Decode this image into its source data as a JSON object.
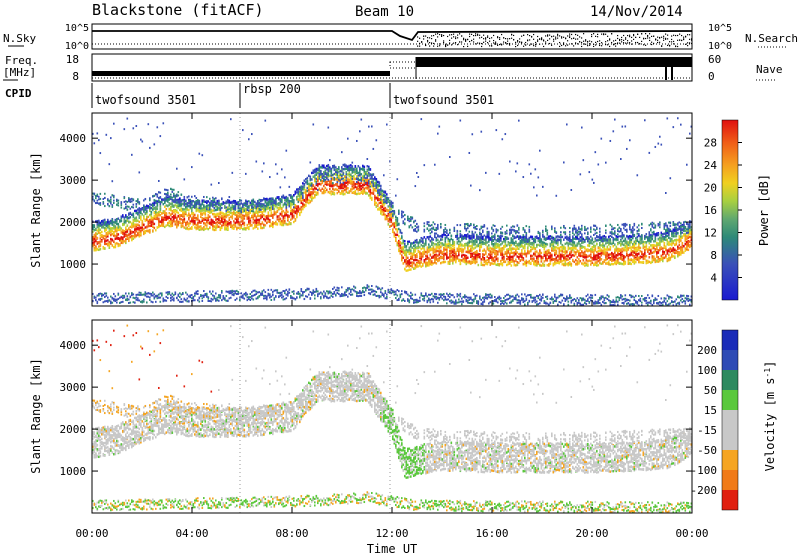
{
  "header": {
    "station": "Blackstone (fitACF)",
    "beam": "Beam 10",
    "date": "14/Nov/2014"
  },
  "noise_panel": {
    "left_label": "N.Sky",
    "right_label": "N.Search",
    "left_ticks": [
      "10^5",
      "10^0"
    ],
    "right_ticks": [
      "10^5",
      "10^0"
    ]
  },
  "freq_panel": {
    "left_label_1": "Freq.",
    "left_label_2": "[MHz]",
    "right_label": "Nave",
    "left_ticks": [
      "18",
      "8"
    ],
    "right_ticks": [
      "60",
      "0"
    ]
  },
  "cpid": {
    "label": "CPID",
    "segments": [
      {
        "name": "twofsound 3501",
        "start_hour": 0,
        "end_hour": 6
      },
      {
        "name": "rbsp 200",
        "start_hour": 6,
        "end_hour": 12
      },
      {
        "name": "twofsound 3501",
        "start_hour": 12,
        "end_hour": 24
      }
    ]
  },
  "chart_data": [
    {
      "type": "heatmap",
      "panel": "power",
      "ylabel": "Slant Range [km]",
      "yticks": [
        1000,
        2000,
        3000,
        4000
      ],
      "ylim": [
        0,
        4600
      ],
      "colorbar_label": "Power [dB]",
      "colorbar_ticks": [
        4,
        8,
        12,
        16,
        20,
        24,
        28
      ],
      "colorbar_range": [
        0,
        32
      ],
      "bands": [
        {
          "name": "main",
          "points": [
            [
              0,
              1550
            ],
            [
              1,
              1650
            ],
            [
              2,
              1900
            ],
            [
              3,
              2150
            ],
            [
              4,
              2050
            ],
            [
              5,
              2050
            ],
            [
              6,
              2050
            ],
            [
              7,
              2100
            ],
            [
              8,
              2200
            ],
            [
              8.7,
              2700
            ],
            [
              9,
              2900
            ],
            [
              10,
              2900
            ],
            [
              11,
              2900
            ],
            [
              12,
              2000
            ],
            [
              12.5,
              1050
            ],
            [
              13,
              1150
            ],
            [
              14,
              1250
            ],
            [
              16,
              1200
            ],
            [
              18,
              1200
            ],
            [
              20,
              1200
            ],
            [
              22,
              1250
            ],
            [
              23,
              1300
            ],
            [
              24,
              1600
            ]
          ]
        },
        {
          "name": "upper",
          "points": [
            [
              0,
              2600
            ],
            [
              2,
              2400
            ],
            [
              3,
              2700
            ],
            [
              4,
              2500
            ],
            [
              6,
              2400
            ],
            [
              8,
              2500
            ],
            [
              9,
              3100
            ],
            [
              11,
              3100
            ],
            [
              12,
              2300
            ],
            [
              13,
              1900
            ],
            [
              16,
              1800
            ],
            [
              20,
              1800
            ],
            [
              24,
              1900
            ]
          ]
        },
        {
          "name": "ground",
          "points": [
            [
              0,
              200
            ],
            [
              4,
              250
            ],
            [
              8,
              300
            ],
            [
              10,
              350
            ],
            [
              11,
              400
            ],
            [
              12,
              300
            ],
            [
              13,
              200
            ],
            [
              24,
              150
            ]
          ]
        }
      ]
    },
    {
      "type": "heatmap",
      "panel": "velocity",
      "ylabel": "Slant Range [km]",
      "xlabel": "Time UT",
      "xticks": [
        "00:00",
        "04:00",
        "08:00",
        "12:00",
        "16:00",
        "20:00",
        "00:00"
      ],
      "xlim_hours": [
        0,
        24
      ],
      "yticks": [
        1000,
        2000,
        3000,
        4000
      ],
      "ylim": [
        0,
        4600
      ],
      "colorbar_label": "Velocity [m s^-1]",
      "colorbar_ticks": [
        200,
        100,
        50,
        15,
        -15,
        -50,
        -100,
        -200
      ],
      "colorbar_colors": [
        "#1a2bb8",
        "#2f4cb5",
        "#2e8a60",
        "#5ac83c",
        "#c8c8c8",
        "#c8c8c8",
        "#f5a522",
        "#f07a18",
        "#e02010"
      ]
    }
  ]
}
